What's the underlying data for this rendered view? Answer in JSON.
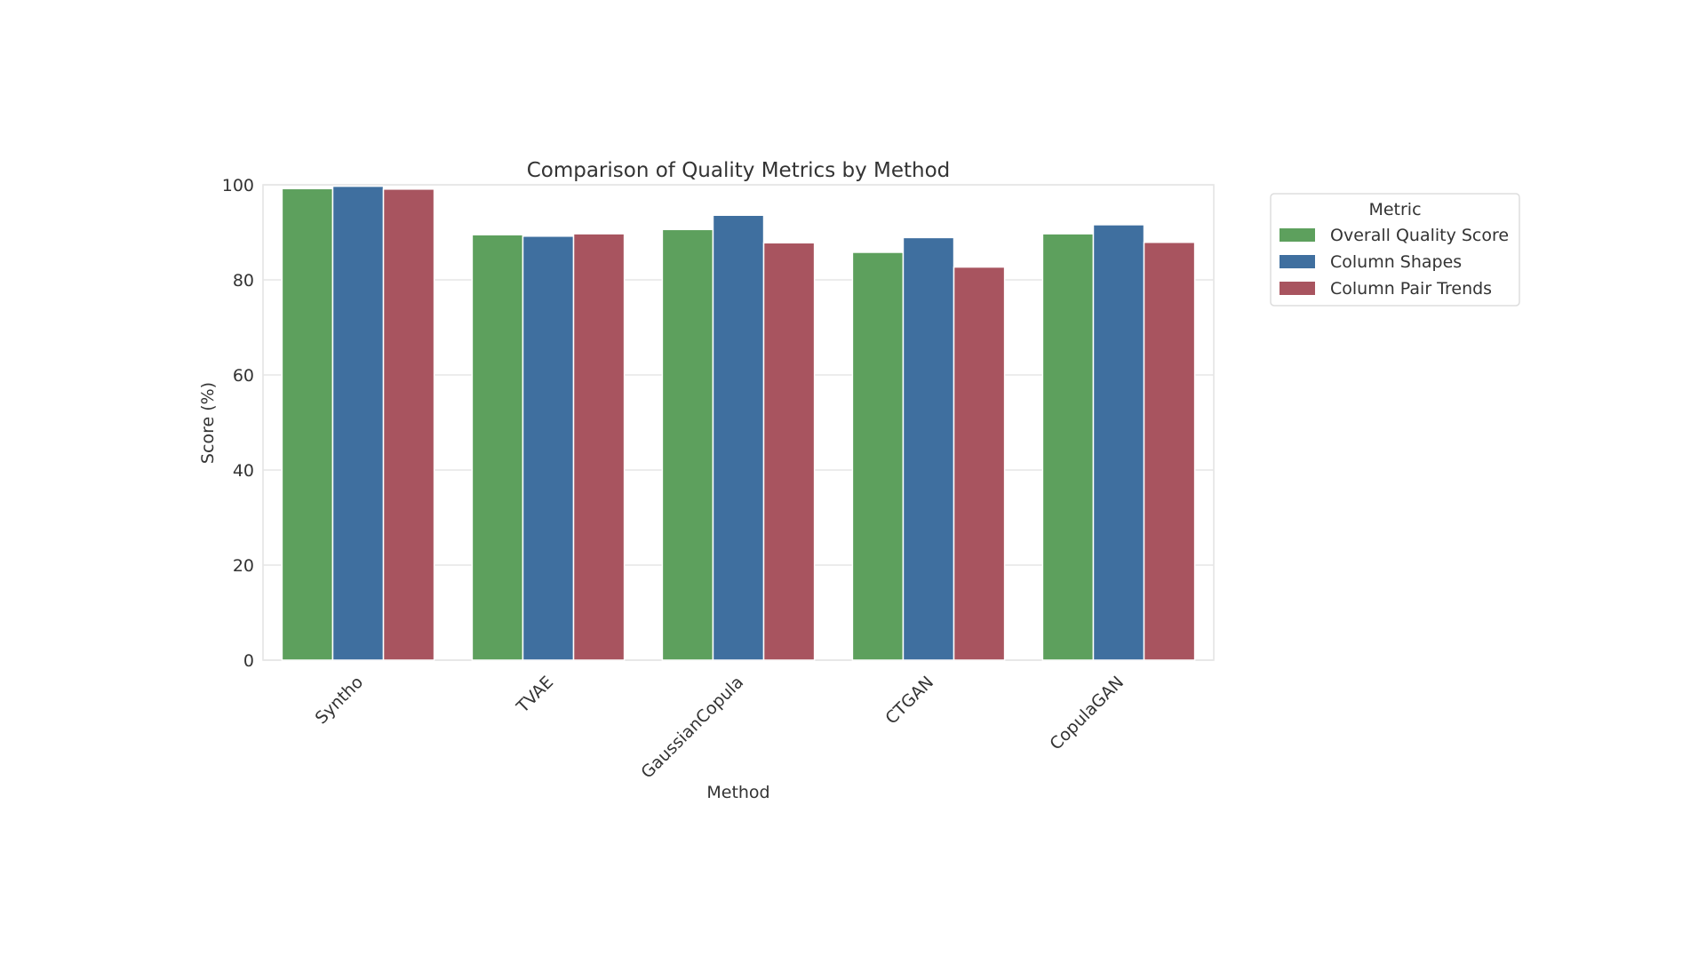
{
  "chart_data": {
    "type": "bar",
    "title": "Comparison of Quality Metrics by Method",
    "xlabel": "Method",
    "ylabel": "Score (%)",
    "ylim": [
      0,
      100
    ],
    "yticks": [
      0,
      20,
      40,
      60,
      80,
      100
    ],
    "grid": true,
    "categories": [
      "Syntho",
      "TVAE",
      "GaussianCopula",
      "CTGAN",
      "CopulaGAN"
    ],
    "legend": {
      "title": "Metric",
      "placement": "outside-right-top"
    },
    "series": [
      {
        "name": "Overall Quality Score",
        "color": "#5da05d",
        "values": [
          99.2,
          89.5,
          90.6,
          85.8,
          89.7
        ]
      },
      {
        "name": "Column Shapes",
        "color": "#3f6f9f",
        "values": [
          99.7,
          89.2,
          93.6,
          88.9,
          91.6
        ]
      },
      {
        "name": "Column Pair Trends",
        "color": "#a8545f",
        "values": [
          99.1,
          89.7,
          87.8,
          82.7,
          87.9
        ]
      }
    ]
  }
}
